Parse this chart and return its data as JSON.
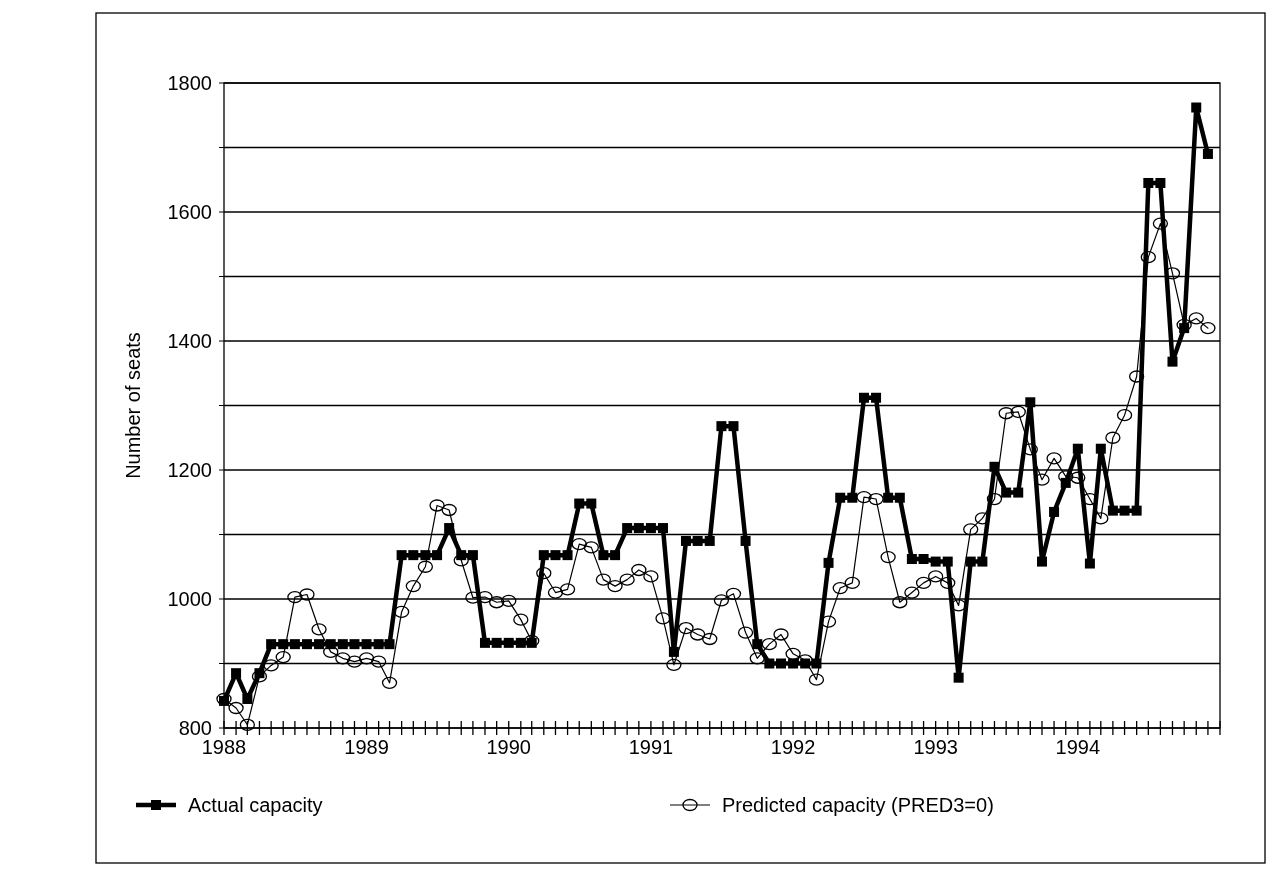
{
  "chart_data": {
    "type": "line",
    "ylabel": "Number of seats",
    "x": [
      "1988-01",
      "1988-02",
      "1988-03",
      "1988-04",
      "1988-05",
      "1988-06",
      "1988-07",
      "1988-08",
      "1988-09",
      "1988-10",
      "1988-11",
      "1988-12",
      "1989-01",
      "1989-02",
      "1989-03",
      "1989-04",
      "1989-05",
      "1989-06",
      "1989-07",
      "1989-08",
      "1989-09",
      "1989-10",
      "1989-11",
      "1989-12",
      "1990-01",
      "1990-02",
      "1990-03",
      "1990-04",
      "1990-05",
      "1990-06",
      "1990-07",
      "1990-08",
      "1990-09",
      "1990-10",
      "1990-11",
      "1990-12",
      "1991-01",
      "1991-02",
      "1991-03",
      "1991-04",
      "1991-05",
      "1991-06",
      "1991-07",
      "1991-08",
      "1991-09",
      "1991-10",
      "1991-11",
      "1991-12",
      "1992-01",
      "1992-02",
      "1992-03",
      "1992-04",
      "1992-05",
      "1992-06",
      "1992-07",
      "1992-08",
      "1992-09",
      "1992-10",
      "1992-11",
      "1992-12",
      "1993-01",
      "1993-02",
      "1993-03",
      "1993-04",
      "1993-05",
      "1993-06",
      "1993-07",
      "1993-08",
      "1993-09",
      "1993-10",
      "1993-11",
      "1993-12",
      "1994-01",
      "1994-02",
      "1994-03",
      "1994-04",
      "1994-05",
      "1994-06",
      "1994-07",
      "1994-08",
      "1994-09",
      "1994-10",
      "1994-11",
      "1994-12"
    ],
    "series": [
      {
        "name": "Actual capacity",
        "color": "#000000",
        "marker": "square",
        "values": [
          842,
          885,
          845,
          885,
          930,
          930,
          930,
          930,
          930,
          930,
          930,
          930,
          930,
          930,
          930,
          1068,
          1068,
          1068,
          1068,
          1110,
          1068,
          1068,
          932,
          932,
          932,
          932,
          932,
          1068,
          1068,
          1068,
          1148,
          1148,
          1068,
          1068,
          1110,
          1110,
          1110,
          1110,
          918,
          1090,
          1090,
          1090,
          1268,
          1268,
          1090,
          930,
          900,
          900,
          900,
          900,
          900,
          1056,
          1157,
          1157,
          1312,
          1312,
          1157,
          1157,
          1062,
          1062,
          1058,
          1058,
          878,
          1058,
          1058,
          1205,
          1165,
          1165,
          1305,
          1058,
          1135,
          1180,
          1233,
          1055,
          1233,
          1137,
          1137,
          1137,
          1645,
          1645,
          1368,
          1420,
          1762,
          1690
        ]
      },
      {
        "name": "Predicted capacity (PRED3=0)",
        "color": "#000000",
        "marker": "circle",
        "values": [
          845,
          831,
          805,
          880,
          897,
          910,
          1003,
          1007,
          953,
          918,
          908,
          903,
          908,
          903,
          870,
          980,
          1020,
          1050,
          1145,
          1138,
          1060,
          1002,
          1003,
          995,
          997,
          968,
          935,
          1040,
          1010,
          1015,
          1085,
          1080,
          1030,
          1020,
          1030,
          1045,
          1035,
          970,
          898,
          955,
          945,
          938,
          998,
          1008,
          948,
          908,
          930,
          945,
          915,
          905,
          875,
          965,
          1017,
          1025,
          1158,
          1155,
          1065,
          995,
          1010,
          1025,
          1035,
          1025,
          990,
          1108,
          1125,
          1155,
          1288,
          1290,
          1232,
          1185,
          1218,
          1190,
          1188,
          1155,
          1125,
          1250,
          1285,
          1345,
          1530,
          1582,
          1505,
          1425,
          1435,
          1420
        ]
      }
    ],
    "xlim": [
      "1988-01",
      "1995-01"
    ],
    "xticks": [
      {
        "value": "1988-01",
        "label": "1988"
      },
      {
        "value": "1988-02",
        "label": null
      },
      {
        "value": "1988-03",
        "label": null
      },
      {
        "value": "1988-04",
        "label": null
      },
      {
        "value": "1988-05",
        "label": null
      },
      {
        "value": "1988-06",
        "label": null
      },
      {
        "value": "1988-07",
        "label": null
      },
      {
        "value": "1988-08",
        "label": null
      },
      {
        "value": "1988-09",
        "label": null
      },
      {
        "value": "1988-10",
        "label": null
      },
      {
        "value": "1988-11",
        "label": null
      },
      {
        "value": "1988-12",
        "label": null
      },
      {
        "value": "1989-01",
        "label": "1989"
      },
      {
        "value": "1989-02",
        "label": null
      },
      {
        "value": "1989-03",
        "label": null
      },
      {
        "value": "1989-04",
        "label": null
      },
      {
        "value": "1989-05",
        "label": null
      },
      {
        "value": "1989-06",
        "label": null
      },
      {
        "value": "1989-07",
        "label": null
      },
      {
        "value": "1989-08",
        "label": null
      },
      {
        "value": "1989-09",
        "label": null
      },
      {
        "value": "1989-10",
        "label": null
      },
      {
        "value": "1989-11",
        "label": null
      },
      {
        "value": "1989-12",
        "label": null
      },
      {
        "value": "1990-01",
        "label": "1990"
      },
      {
        "value": "1990-02",
        "label": null
      },
      {
        "value": "1990-03",
        "label": null
      },
      {
        "value": "1990-04",
        "label": null
      },
      {
        "value": "1990-05",
        "label": null
      },
      {
        "value": "1990-06",
        "label": null
      },
      {
        "value": "1990-07",
        "label": null
      },
      {
        "value": "1990-08",
        "label": null
      },
      {
        "value": "1990-09",
        "label": null
      },
      {
        "value": "1990-10",
        "label": null
      },
      {
        "value": "1990-11",
        "label": null
      },
      {
        "value": "1990-12",
        "label": null
      },
      {
        "value": "1991-01",
        "label": "1991"
      },
      {
        "value": "1991-02",
        "label": null
      },
      {
        "value": "1991-03",
        "label": null
      },
      {
        "value": "1991-04",
        "label": null
      },
      {
        "value": "1991-05",
        "label": null
      },
      {
        "value": "1991-06",
        "label": null
      },
      {
        "value": "1991-07",
        "label": null
      },
      {
        "value": "1991-08",
        "label": null
      },
      {
        "value": "1991-09",
        "label": null
      },
      {
        "value": "1991-10",
        "label": null
      },
      {
        "value": "1991-11",
        "label": null
      },
      {
        "value": "1991-12",
        "label": null
      },
      {
        "value": "1992-01",
        "label": "1992"
      },
      {
        "value": "1992-02",
        "label": null
      },
      {
        "value": "1992-03",
        "label": null
      },
      {
        "value": "1992-04",
        "label": null
      },
      {
        "value": "1992-05",
        "label": null
      },
      {
        "value": "1992-06",
        "label": null
      },
      {
        "value": "1992-07",
        "label": null
      },
      {
        "value": "1992-08",
        "label": null
      },
      {
        "value": "1992-09",
        "label": null
      },
      {
        "value": "1992-10",
        "label": null
      },
      {
        "value": "1992-11",
        "label": null
      },
      {
        "value": "1992-12",
        "label": null
      },
      {
        "value": "1993-01",
        "label": "1993"
      },
      {
        "value": "1993-02",
        "label": null
      },
      {
        "value": "1993-03",
        "label": null
      },
      {
        "value": "1993-04",
        "label": null
      },
      {
        "value": "1993-05",
        "label": null
      },
      {
        "value": "1993-06",
        "label": null
      },
      {
        "value": "1993-07",
        "label": null
      },
      {
        "value": "1993-08",
        "label": null
      },
      {
        "value": "1993-09",
        "label": null
      },
      {
        "value": "1993-10",
        "label": null
      },
      {
        "value": "1993-11",
        "label": null
      },
      {
        "value": "1993-12",
        "label": null
      },
      {
        "value": "1994-01",
        "label": "1994"
      },
      {
        "value": "1994-02",
        "label": null
      },
      {
        "value": "1994-03",
        "label": null
      },
      {
        "value": "1994-04",
        "label": null
      },
      {
        "value": "1994-05",
        "label": null
      },
      {
        "value": "1994-06",
        "label": null
      },
      {
        "value": "1994-07",
        "label": null
      },
      {
        "value": "1994-08",
        "label": null
      },
      {
        "value": "1994-09",
        "label": null
      },
      {
        "value": "1994-10",
        "label": null
      },
      {
        "value": "1994-11",
        "label": null
      },
      {
        "value": "1994-12",
        "label": null
      },
      {
        "value": "1995-01",
        "label": null
      }
    ],
    "ylim": [
      800,
      1800
    ],
    "yticks": [
      800,
      {
        "value": 900,
        "label": null
      },
      1000,
      {
        "value": 1100,
        "label": null
      },
      1200,
      {
        "value": 1300,
        "label": null
      },
      1400,
      {
        "value": 1500,
        "label": null
      },
      1600,
      {
        "value": 1700,
        "label": null
      },
      1800
    ],
    "grid": "y",
    "legend": "bottom",
    "line_style": "solid"
  }
}
